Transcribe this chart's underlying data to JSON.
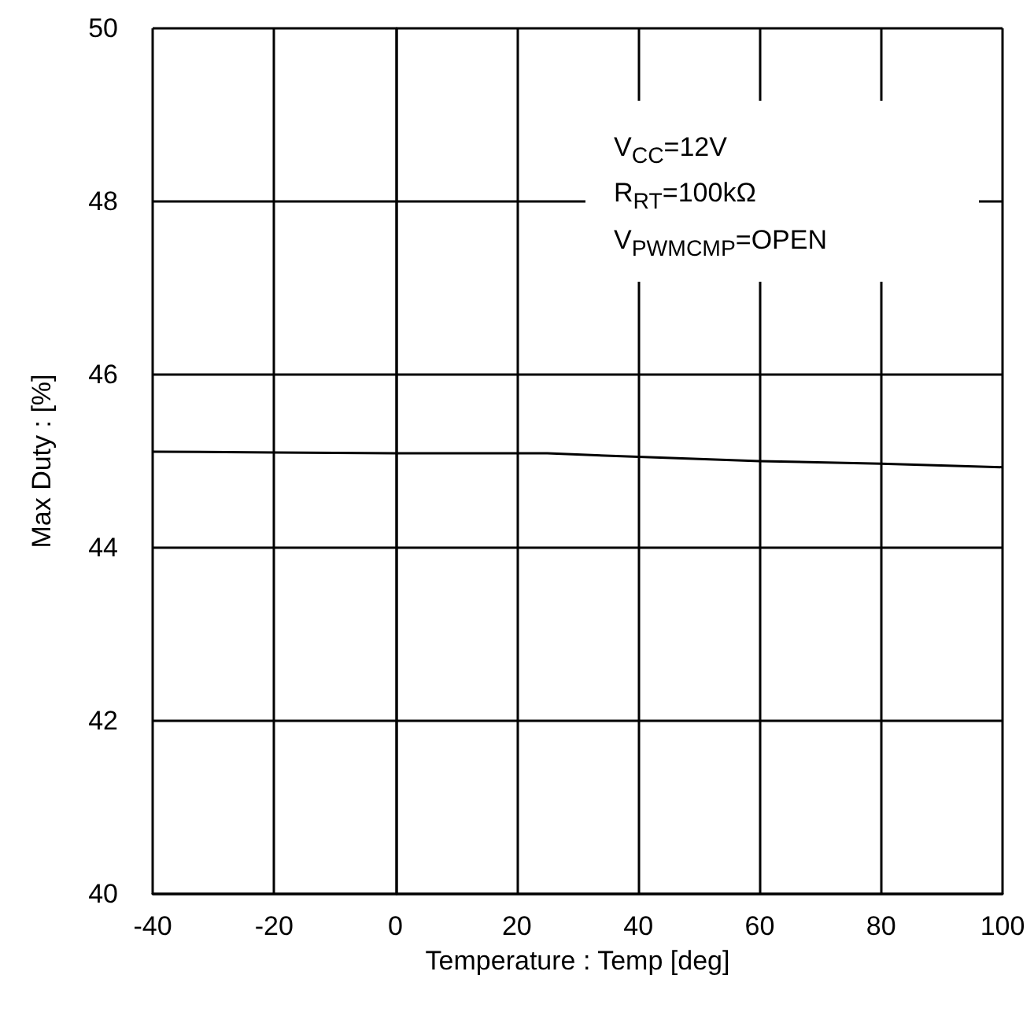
{
  "chart_data": {
    "type": "line",
    "xlabel": "Temperature : Temp [deg]",
    "ylabel": "Max Duty : [%]",
    "x": [
      -40,
      -20,
      0,
      20,
      25,
      40,
      60,
      80,
      100
    ],
    "series": [
      {
        "color": "#000000",
        "values": [
          45.11,
          45.1,
          45.09,
          45.09,
          45.09,
          45.05,
          45.0,
          44.97,
          44.93
        ]
      }
    ],
    "xlim": [
      -40,
      100
    ],
    "xticks": [
      -40,
      -20,
      0,
      20,
      40,
      60,
      80,
      100
    ],
    "ylim": [
      40,
      50
    ],
    "yticks": [
      40,
      42,
      44,
      46,
      48,
      50
    ],
    "grid": true,
    "marker": "none",
    "line_style": "solid",
    "annotations": [
      "V$_{CC}$=12V",
      "R$_{RT}$=100kΩ",
      "V$_{PWMCMP}$=OPEN"
    ]
  }
}
